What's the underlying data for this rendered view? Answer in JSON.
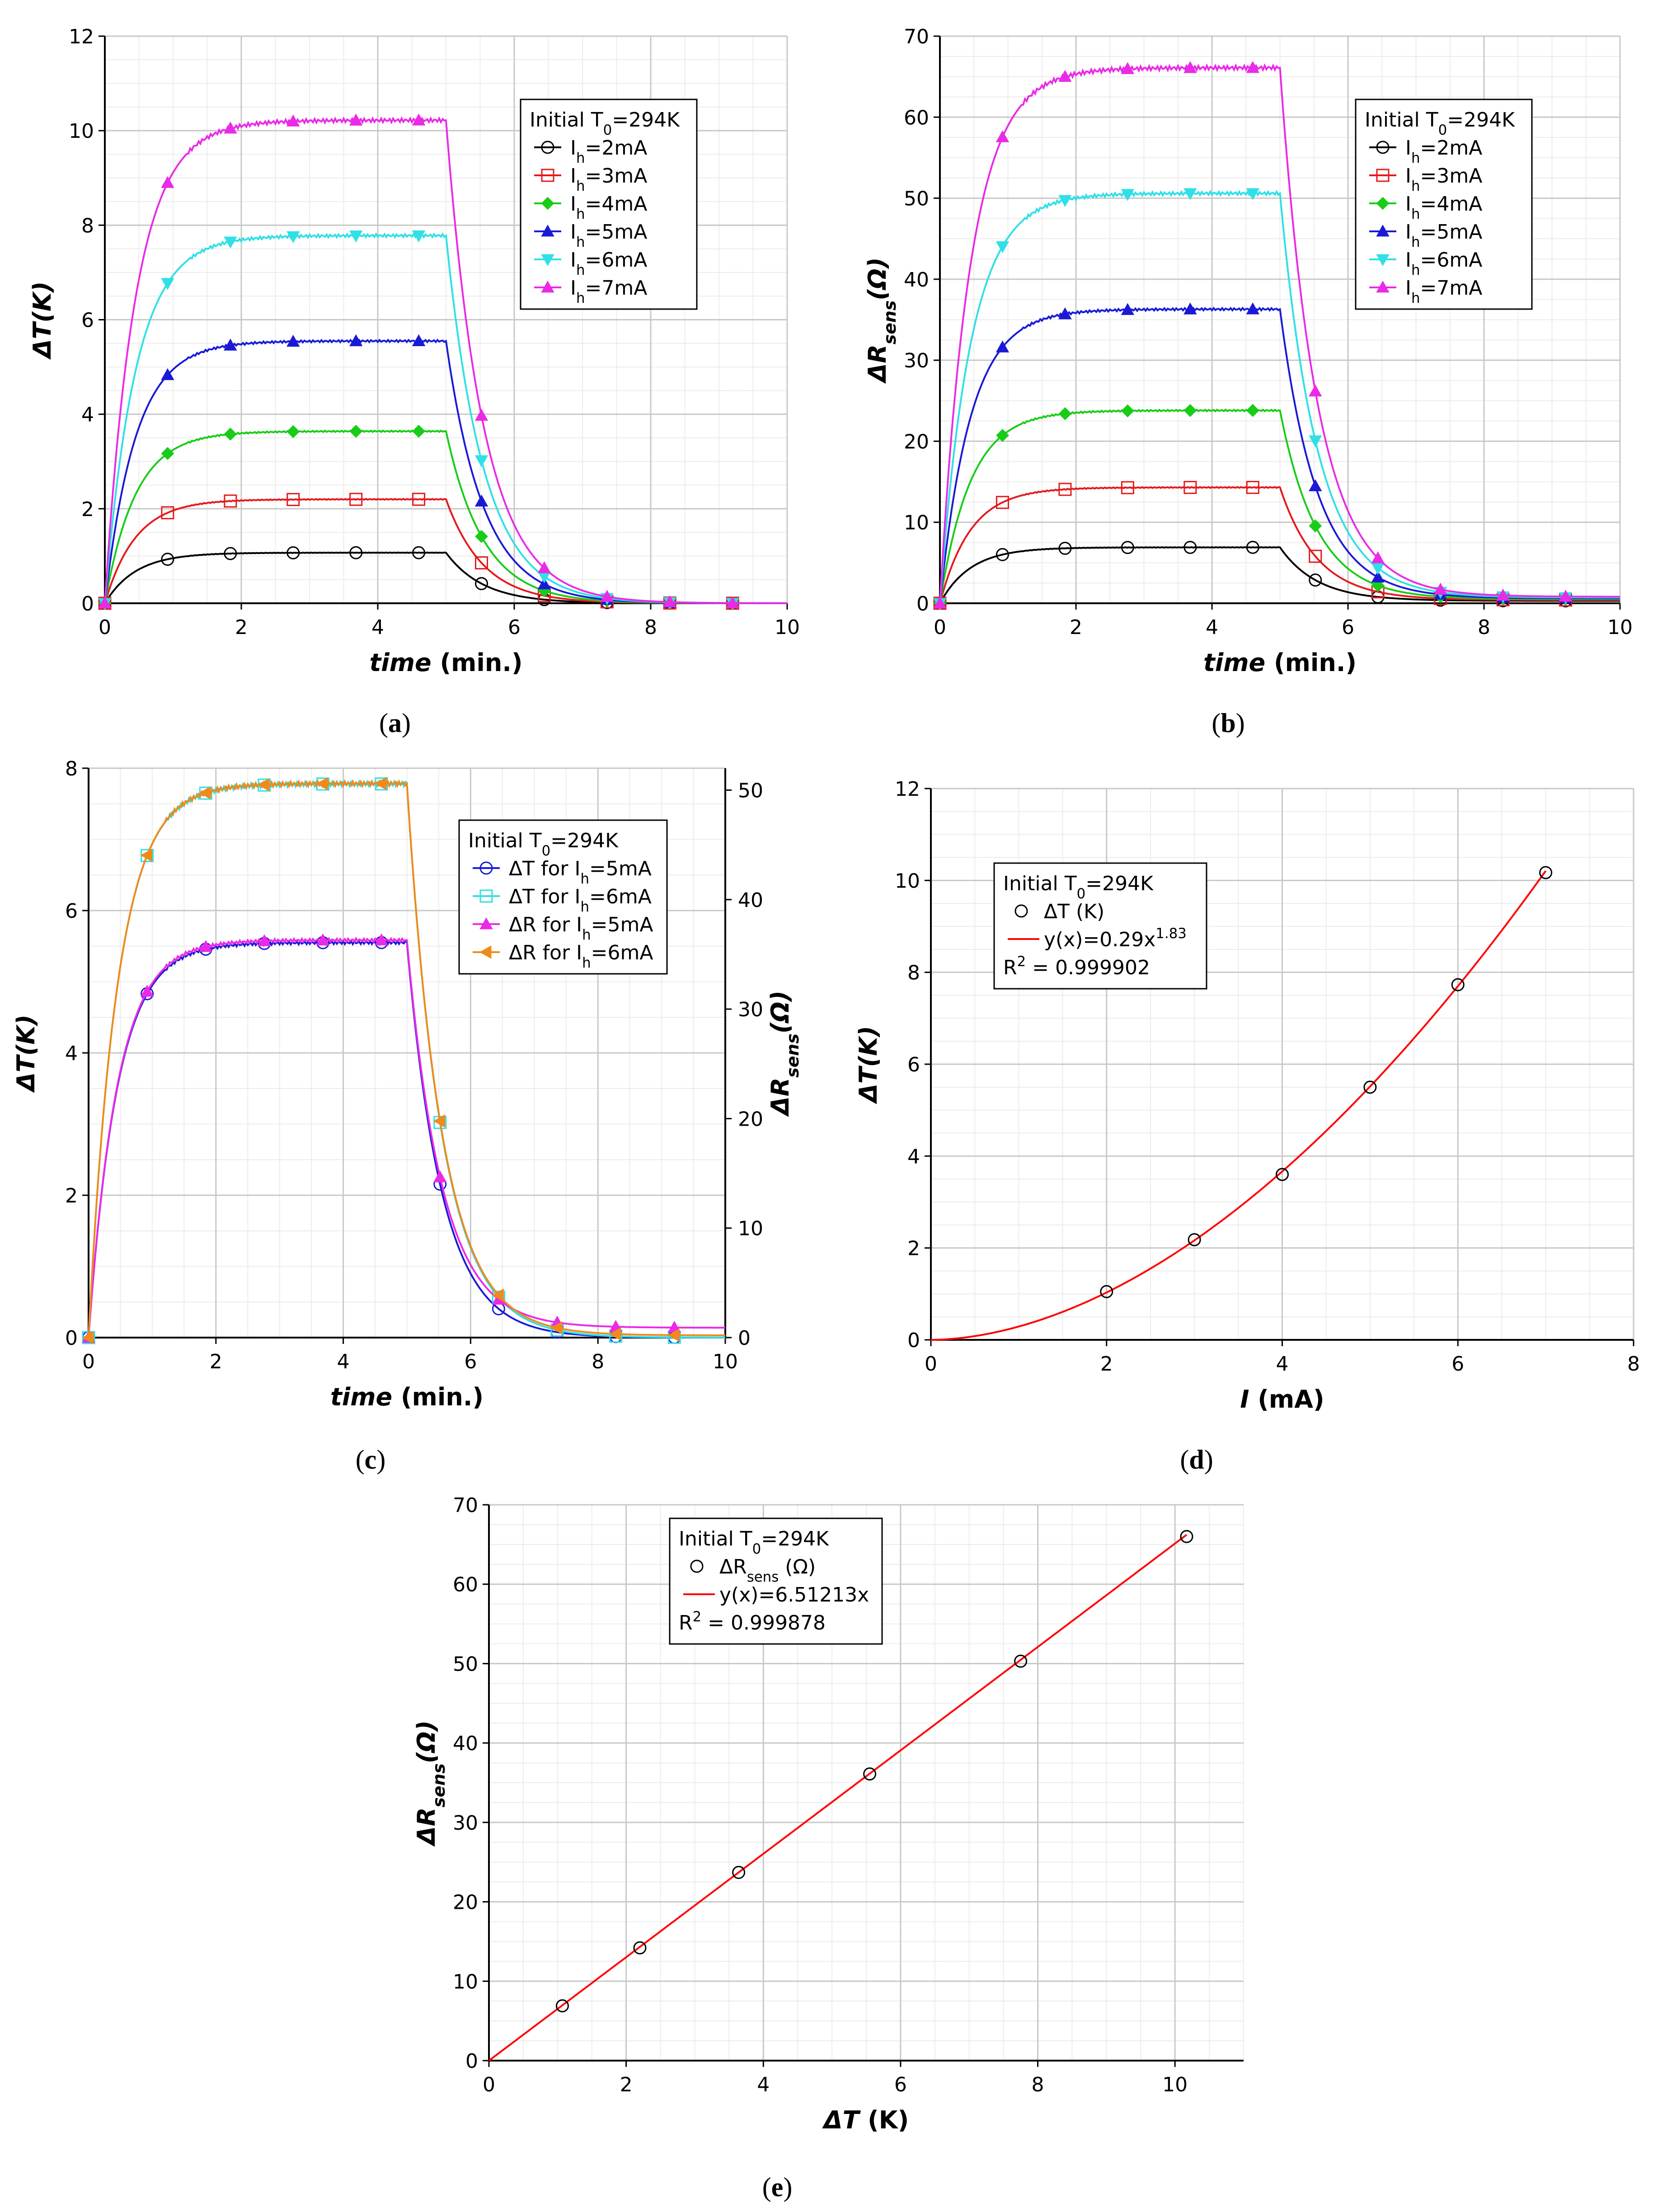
{
  "panels": [
    {
      "caption": "a",
      "chart_data": {
        "type": "line",
        "xlabel": "time",
        "xunit": "(min.)",
        "ylabel": "ΔT(K)",
        "xlim": [
          0,
          10
        ],
        "ylim": [
          0,
          12
        ],
        "xticks": [
          0,
          2,
          4,
          6,
          8,
          10
        ],
        "yticks": [
          0,
          2,
          4,
          6,
          8,
          10,
          12
        ],
        "grid": true,
        "legend": {
          "position": "top-right",
          "title": "Initial T0=294K",
          "entries": [
            "Ih=2mA",
            "Ih=3mA",
            "Ih=4mA",
            "Ih=5mA",
            "Ih=6mA",
            "Ih=7mA"
          ]
        },
        "model": "heating rise to plateau 0–5 min, cooling decay 5–10 min",
        "series": [
          {
            "name": "Ih=2mA",
            "color": "#000000",
            "marker": "circle",
            "plateau": 1.07,
            "tail": 0.0
          },
          {
            "name": "Ih=3mA",
            "color": "#e41a1c",
            "marker": "square",
            "plateau": 2.2,
            "tail": 0.0
          },
          {
            "name": "Ih=4mA",
            "color": "#18cc18",
            "marker": "diamond",
            "plateau": 3.64,
            "tail": 0.0
          },
          {
            "name": "Ih=5mA",
            "color": "#1a1ad6",
            "marker": "triangle-up",
            "plateau": 5.55,
            "tail": 0.0
          },
          {
            "name": "Ih=6mA",
            "color": "#2fe0e6",
            "marker": "triangle-down",
            "plateau": 7.78,
            "tail": 0.0
          },
          {
            "name": "Ih=7mA",
            "color": "#ea2ae6",
            "marker": "triangle-up",
            "plateau": 10.22,
            "tail": 0.0
          }
        ]
      }
    },
    {
      "caption": "b",
      "chart_data": {
        "type": "line",
        "xlabel": "time",
        "xunit": "(min.)",
        "ylabel": "ΔRsens(Ω)",
        "xlim": [
          0,
          10
        ],
        "ylim": [
          0,
          70
        ],
        "xticks": [
          0,
          2,
          4,
          6,
          8,
          10
        ],
        "yticks": [
          0,
          10,
          20,
          30,
          40,
          50,
          60,
          70
        ],
        "grid": true,
        "legend": {
          "position": "top-right",
          "title": "Initial T0=294K",
          "entries": [
            "Ih=2mA",
            "Ih=3mA",
            "Ih=4mA",
            "Ih=5mA",
            "Ih=6mA",
            "Ih=7mA"
          ]
        },
        "series": [
          {
            "name": "Ih=2mA",
            "color": "#000000",
            "marker": "circle",
            "plateau": 6.9,
            "tail": 0.3
          },
          {
            "name": "Ih=3mA",
            "color": "#e41a1c",
            "marker": "square",
            "plateau": 14.3,
            "tail": 0.4
          },
          {
            "name": "Ih=4mA",
            "color": "#18cc18",
            "marker": "diamond",
            "plateau": 23.8,
            "tail": 0.5
          },
          {
            "name": "Ih=5mA",
            "color": "#1a1ad6",
            "marker": "triangle-up",
            "plateau": 36.3,
            "tail": 0.6
          },
          {
            "name": "Ih=6mA",
            "color": "#2fe0e6",
            "marker": "triangle-down",
            "plateau": 50.6,
            "tail": 0.7
          },
          {
            "name": "Ih=7mA",
            "color": "#ea2ae6",
            "marker": "triangle-up",
            "plateau": 66.1,
            "tail": 0.8
          }
        ]
      }
    },
    {
      "caption": "c",
      "chart_data": {
        "type": "line",
        "xlabel": "time",
        "xunit": "(min.)",
        "ylabel": "ΔT(K)",
        "y2label": "ΔRsens(Ω)",
        "xlim": [
          0,
          10
        ],
        "ylim": [
          0,
          8
        ],
        "y2lim": [
          0,
          52
        ],
        "xticks": [
          0,
          2,
          4,
          6,
          8,
          10
        ],
        "yticks": [
          0,
          2,
          4,
          6,
          8
        ],
        "y2ticks": [
          0,
          10,
          20,
          30,
          40,
          50
        ],
        "grid": true,
        "legend": {
          "position": "top-right",
          "title": "Initial T0=294K",
          "entries": [
            "ΔT for Ih=5mA",
            "ΔT for Ih=6mA",
            "ΔR for Ih=5mA",
            "ΔR for Ih=6mA"
          ]
        },
        "series": [
          {
            "name": "ΔT for Ih=5mA",
            "axis": "left",
            "color": "#1a1ad6",
            "marker": "circle",
            "plateau": 5.55,
            "tail": 0.0
          },
          {
            "name": "ΔT for Ih=6mA",
            "axis": "left",
            "color": "#2fe0e6",
            "marker": "square",
            "plateau": 7.78,
            "tail": 0.0
          },
          {
            "name": "ΔR for Ih=5mA",
            "axis": "right",
            "color": "#ea2ae6",
            "marker": "triangle-up",
            "plateau": 36.3,
            "tail": 0.9
          },
          {
            "name": "ΔR for Ih=6mA",
            "axis": "right",
            "color": "#f08a1a",
            "marker": "triangle-left",
            "plateau": 50.6,
            "tail": 0.2
          }
        ]
      }
    },
    {
      "caption": "d",
      "chart_data": {
        "type": "scatter",
        "xlabel": "I",
        "xunit": "(mA)",
        "ylabel": "ΔT(K)",
        "xlim": [
          0,
          8
        ],
        "ylim": [
          0,
          12
        ],
        "xticks": [
          0,
          2,
          4,
          6,
          8
        ],
        "yticks": [
          0,
          2,
          4,
          6,
          8,
          10,
          12
        ],
        "grid": true,
        "legend": {
          "position": "top-left",
          "title": "Initial T0=294K",
          "entries": [
            "ΔT (K)",
            "y(x)=0.29x^1.83",
            "R^2 = 0.999902"
          ]
        },
        "points": {
          "name": "ΔT (K)",
          "x": [
            2,
            3,
            4,
            5,
            6,
            7
          ],
          "y": [
            1.05,
            2.18,
            3.6,
            5.5,
            7.73,
            10.17
          ]
        },
        "fit": {
          "name": "y(x)=0.29x^1.83",
          "a": 0.29,
          "b": 1.83,
          "r2": "0.999902",
          "color": "#ff0000",
          "x_range": [
            0,
            7
          ]
        }
      }
    },
    {
      "caption": "e",
      "chart_data": {
        "type": "scatter",
        "xlabel": "ΔT",
        "xunit": "(K)",
        "ylabel": "ΔRsens(Ω)",
        "xlim": [
          0,
          11
        ],
        "ylim": [
          0,
          70
        ],
        "xticks": [
          0,
          2,
          4,
          6,
          8,
          10
        ],
        "yticks": [
          0,
          10,
          20,
          30,
          40,
          50,
          60,
          70
        ],
        "grid": true,
        "legend": {
          "position": "top-center",
          "title": "Initial T0=294K",
          "entries": [
            "ΔRsens (Ω)",
            "y(x)=6.51213x",
            "R^2 = 0.999878"
          ]
        },
        "points": {
          "name": "ΔRsens (Ω)",
          "x": [
            1.07,
            2.2,
            3.64,
            5.55,
            7.75,
            10.17
          ],
          "y": [
            6.9,
            14.2,
            23.7,
            36.1,
            50.3,
            66.0
          ]
        },
        "fit": {
          "name": "y(x)=6.51213x",
          "a": 6.51213,
          "b": 1,
          "r2": "0.999878",
          "color": "#ff0000",
          "x_range": [
            0,
            10.17
          ]
        }
      }
    }
  ]
}
